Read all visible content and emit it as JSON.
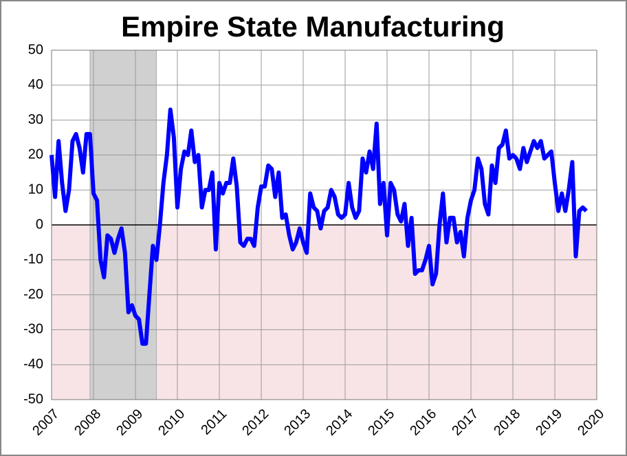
{
  "chart_data": {
    "type": "line",
    "title": "Empire State Manufacturing",
    "x": [
      2007,
      2007.083,
      2007.167,
      2007.25,
      2007.333,
      2007.417,
      2007.5,
      2007.583,
      2007.667,
      2007.75,
      2007.833,
      2007.917,
      2008,
      2008.083,
      2008.167,
      2008.25,
      2008.333,
      2008.417,
      2008.5,
      2008.583,
      2008.667,
      2008.75,
      2008.833,
      2008.917,
      2009,
      2009.083,
      2009.167,
      2009.25,
      2009.333,
      2009.417,
      2009.5,
      2009.583,
      2009.667,
      2009.75,
      2009.833,
      2009.917,
      2010,
      2010.083,
      2010.167,
      2010.25,
      2010.333,
      2010.417,
      2010.5,
      2010.583,
      2010.667,
      2010.75,
      2010.833,
      2010.917,
      2011,
      2011.083,
      2011.167,
      2011.25,
      2011.333,
      2011.417,
      2011.5,
      2011.583,
      2011.667,
      2011.75,
      2011.833,
      2011.917,
      2012,
      2012.083,
      2012.167,
      2012.25,
      2012.333,
      2012.417,
      2012.5,
      2012.583,
      2012.667,
      2012.75,
      2012.833,
      2012.917,
      2013,
      2013.083,
      2013.167,
      2013.25,
      2013.333,
      2013.417,
      2013.5,
      2013.583,
      2013.667,
      2013.75,
      2013.833,
      2013.917,
      2014,
      2014.083,
      2014.167,
      2014.25,
      2014.333,
      2014.417,
      2014.5,
      2014.583,
      2014.667,
      2014.75,
      2014.833,
      2014.917,
      2015,
      2015.083,
      2015.167,
      2015.25,
      2015.333,
      2015.417,
      2015.5,
      2015.583,
      2015.667,
      2015.75,
      2015.833,
      2015.917,
      2016,
      2016.083,
      2016.167,
      2016.25,
      2016.333,
      2016.417,
      2016.5,
      2016.583,
      2016.667,
      2016.75,
      2016.833,
      2016.917,
      2017,
      2017.083,
      2017.167,
      2017.25,
      2017.333,
      2017.417,
      2017.5,
      2017.583,
      2017.667,
      2017.75,
      2017.833,
      2017.917,
      2018,
      2018.083,
      2018.167,
      2018.25,
      2018.333,
      2018.417,
      2018.5,
      2018.583,
      2018.667,
      2018.75,
      2018.833,
      2018.917,
      2019,
      2019.083,
      2019.167,
      2019.25,
      2019.333,
      2019.417,
      2019.5,
      2019.583,
      2019.667,
      2019.75
    ],
    "series": [
      {
        "color": "#0000ff",
        "values": [
          20,
          8,
          24,
          12,
          4,
          10,
          24,
          26,
          22,
          15,
          26,
          26,
          9,
          7,
          -10,
          -15,
          -3,
          -4,
          -8,
          -4,
          -1,
          -8,
          -25,
          -23,
          -26,
          -27,
          -34,
          -34,
          -20,
          -6,
          -10,
          0,
          12,
          20,
          33,
          25,
          5,
          16,
          21,
          20,
          27,
          18,
          20,
          5,
          10,
          10,
          15,
          -7,
          12,
          9,
          12,
          12,
          19,
          11,
          -5,
          -6,
          -4,
          -4,
          -6,
          5,
          11,
          11,
          17,
          16,
          8,
          15,
          2,
          3,
          -3,
          -7,
          -5,
          -1,
          -5,
          -8,
          9,
          5,
          4,
          -1,
          4,
          5,
          10,
          8,
          3,
          2,
          3,
          12,
          5,
          2,
          4,
          19,
          15,
          21,
          16,
          29,
          6,
          12,
          -3,
          12,
          10,
          3,
          1,
          6,
          -6,
          2,
          -14,
          -13,
          -13,
          -10,
          -6,
          -17,
          -14,
          0,
          9,
          -5,
          2,
          2,
          -5,
          -2,
          -9,
          2,
          7,
          10,
          19,
          16,
          6,
          3,
          17,
          12,
          22,
          23,
          27,
          19,
          20,
          19,
          16,
          22,
          18,
          21,
          24,
          22,
          24,
          19,
          20,
          21,
          12,
          4,
          9,
          4,
          10,
          18,
          -9,
          4,
          5,
          4
        ]
      }
    ],
    "xlim": [
      2007,
      2020
    ],
    "xticks": [
      2007,
      2008,
      2009,
      2010,
      2011,
      2012,
      2013,
      2014,
      2015,
      2016,
      2017,
      2018,
      2019,
      2020
    ],
    "ylim": [
      -50,
      50
    ],
    "yticks": [
      -50,
      -40,
      -30,
      -20,
      -10,
      0,
      10,
      20,
      30,
      40,
      50
    ],
    "grid": true,
    "recession": [
      2007.917,
      2009.5
    ],
    "recession_color": "#d0d0d0",
    "negative_color": "#f8e4e6"
  }
}
